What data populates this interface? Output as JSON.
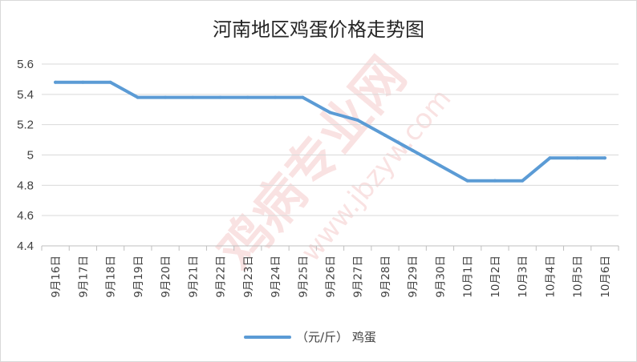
{
  "chart_data": {
    "type": "line",
    "title": "河南地区鸡蛋价格走势图",
    "categories": [
      "9月16日",
      "9月17日",
      "9月18日",
      "9月19日",
      "9月20日",
      "9月21日",
      "9月22日",
      "9月23日",
      "9月24日",
      "9月25日",
      "9月26日",
      "9月27日",
      "9月28日",
      "9月29日",
      "9月30日",
      "10月1日",
      "10月2日",
      "10月3日",
      "10月4日",
      "10月5日",
      "10月6日"
    ],
    "series": [
      {
        "name": "（元/斤）  鸡蛋",
        "color": "#5b9bd5",
        "values": [
          5.48,
          5.48,
          5.48,
          5.38,
          5.38,
          5.38,
          5.38,
          5.38,
          5.38,
          5.38,
          5.28,
          5.23,
          5.13,
          5.03,
          4.93,
          4.83,
          4.83,
          4.83,
          4.98,
          4.98,
          4.98
        ]
      }
    ],
    "yticks": [
      "4.4",
      "4.6",
      "4.8",
      "5",
      "5.2",
      "5.4",
      "5.6"
    ],
    "ylim": [
      4.4,
      5.6
    ],
    "grid": true,
    "legend_position": "bottom"
  },
  "watermark": {
    "main": "鸡病专业网",
    "url": "www.jbzyw.com"
  }
}
